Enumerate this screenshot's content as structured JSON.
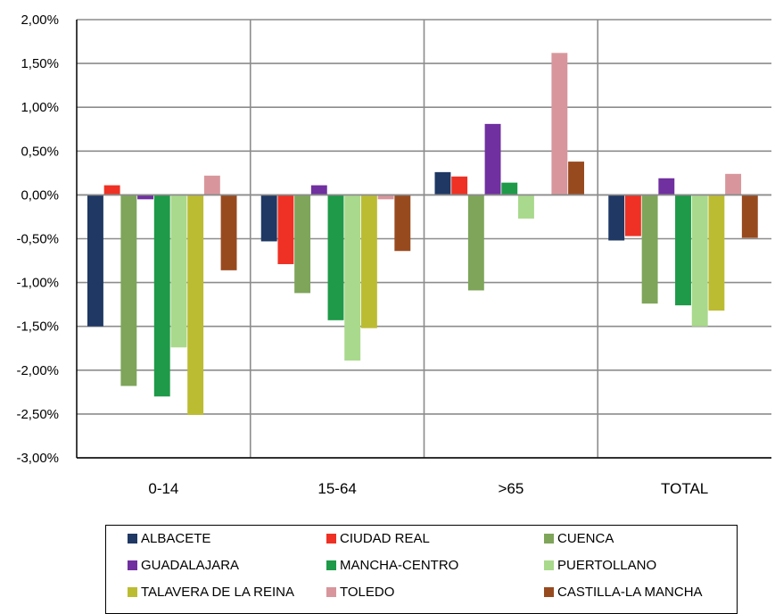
{
  "chart_data": {
    "type": "bar",
    "categories": [
      "0-14",
      "15-64",
      ">65",
      "TOTAL"
    ],
    "ylim": [
      -3.0,
      2.0
    ],
    "yticks": [
      "2,00%",
      "1,50%",
      "1,00%",
      "0,50%",
      "0,00%",
      "-0,50%",
      "-1,00%",
      "-1,50%",
      "-2,00%",
      "-2,50%",
      "-3,00%"
    ],
    "ytick_values": [
      2.0,
      1.5,
      1.0,
      0.5,
      0.0,
      -0.5,
      -1.0,
      -1.5,
      -2.0,
      -2.5,
      -3.0
    ],
    "grid": true,
    "legend_position": "bottom",
    "series": [
      {
        "name": "ALBACETE",
        "color": "#1f3864",
        "values": [
          -1.5,
          -0.53,
          0.26,
          -0.52
        ]
      },
      {
        "name": "CIUDAD REAL",
        "color": "#ee3124",
        "values": [
          0.11,
          -0.79,
          0.21,
          -0.47
        ]
      },
      {
        "name": "CUENCA",
        "color": "#7ea55a",
        "values": [
          -2.18,
          -1.12,
          -1.09,
          -1.24
        ]
      },
      {
        "name": "GUADALAJARA",
        "color": "#7030a0",
        "values": [
          -0.05,
          0.11,
          0.81,
          0.19
        ]
      },
      {
        "name": "MANCHA-CENTRO",
        "color": "#1e9a48",
        "values": [
          -2.3,
          -1.43,
          0.14,
          -1.26
        ]
      },
      {
        "name": "PUERTOLLANO",
        "color": "#a9d98c",
        "values": [
          -1.74,
          -1.89,
          -0.27,
          -1.5
        ]
      },
      {
        "name": "TALAVERA DE LA REINA",
        "color": "#bcbc32",
        "values": [
          -2.51,
          -1.52,
          0.0,
          -1.32
        ]
      },
      {
        "name": "TOLEDO",
        "color": "#d8969c",
        "values": [
          0.22,
          -0.05,
          1.62,
          0.24
        ]
      },
      {
        "name": "CASTILLA-LA MANCHA",
        "color": "#984a1f",
        "values": [
          -0.86,
          -0.64,
          0.38,
          -0.49
        ]
      }
    ]
  }
}
